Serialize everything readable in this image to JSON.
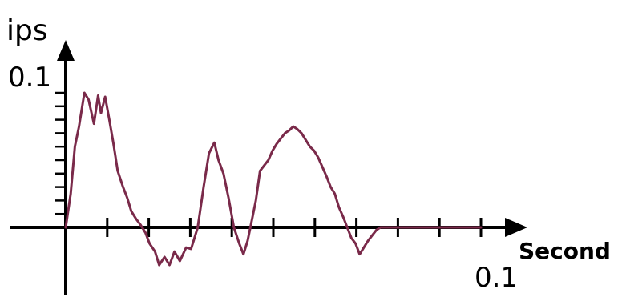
{
  "chart_data": {
    "type": "line",
    "title": "",
    "ylabel": "ips",
    "xlabel": "Second",
    "x_tick_label_end": "0.1",
    "y_tick_label_max": "0.1",
    "xlim": [
      0,
      0.1
    ],
    "ylim": [
      -0.08,
      0.12
    ],
    "y_max_label_value": 0.1,
    "x_major_ticks": 10,
    "y_minor_ticks": 10,
    "grid": false,
    "legend": "none",
    "colors": {
      "axis": "#000000",
      "series": "#7a2a4a"
    },
    "series": [
      {
        "x": [
          0.0,
          0.0012,
          0.0022,
          0.0032,
          0.0045,
          0.0055,
          0.0068,
          0.0078,
          0.0085,
          0.0095,
          0.0105,
          0.0115,
          0.0125,
          0.0138,
          0.0148,
          0.0158,
          0.017,
          0.018,
          0.0192,
          0.0202,
          0.0215,
          0.0225,
          0.0238,
          0.025,
          0.0262,
          0.0275,
          0.029,
          0.0302,
          0.0318,
          0.0332,
          0.0345,
          0.0358,
          0.0368,
          0.038,
          0.0392,
          0.0405,
          0.0418,
          0.0428,
          0.0438,
          0.0448,
          0.0458,
          0.0468,
          0.0478,
          0.0488,
          0.0498,
          0.0508,
          0.0518,
          0.0528,
          0.0538,
          0.0548,
          0.0558,
          0.0568,
          0.0578,
          0.0588,
          0.0598,
          0.0608,
          0.0618,
          0.0628,
          0.0638,
          0.0648,
          0.0658,
          0.0668,
          0.0678,
          0.0688,
          0.0698,
          0.0708,
          0.0718,
          0.0728,
          0.0738,
          0.0748,
          0.0758,
          0.0768,
          0.0778,
          0.0788,
          0.0798,
          0.0808,
          0.0818,
          0.0828,
          0.0838,
          0.0848,
          0.0858,
          0.0868,
          0.0878,
          0.0888,
          0.0898,
          0.0908,
          0.0918,
          0.0928,
          0.0938,
          0.0948,
          0.0958,
          0.0968,
          0.0978,
          0.0988,
          0.1
        ],
        "y": [
          0.0,
          0.025,
          0.06,
          0.075,
          0.1,
          0.095,
          0.077,
          0.098,
          0.085,
          0.097,
          0.08,
          0.062,
          0.042,
          0.03,
          0.022,
          0.012,
          0.006,
          0.002,
          -0.004,
          -0.012,
          -0.018,
          -0.028,
          -0.022,
          -0.028,
          -0.018,
          -0.025,
          -0.015,
          -0.016,
          0.0,
          0.03,
          0.055,
          0.063,
          0.05,
          0.04,
          0.022,
          0.0,
          -0.012,
          -0.02,
          -0.01,
          0.005,
          0.02,
          0.042,
          0.046,
          0.05,
          0.057,
          0.062,
          0.066,
          0.07,
          0.072,
          0.075,
          0.073,
          0.07,
          0.065,
          0.06,
          0.057,
          0.052,
          0.045,
          0.038,
          0.03,
          0.025,
          0.015,
          0.008,
          0.0,
          -0.008,
          -0.012,
          -0.02,
          -0.015,
          -0.01,
          -0.006,
          -0.002,
          0.0,
          0.0,
          0.0,
          0.0,
          0.0,
          0.0,
          0.0,
          0.0,
          0.0,
          0.0,
          0.0,
          0.0,
          0.0,
          0.0,
          0.0,
          0.0,
          0.0,
          0.0,
          0.0,
          0.0,
          0.0,
          0.0,
          0.0,
          0.0,
          0.0
        ]
      }
    ]
  }
}
